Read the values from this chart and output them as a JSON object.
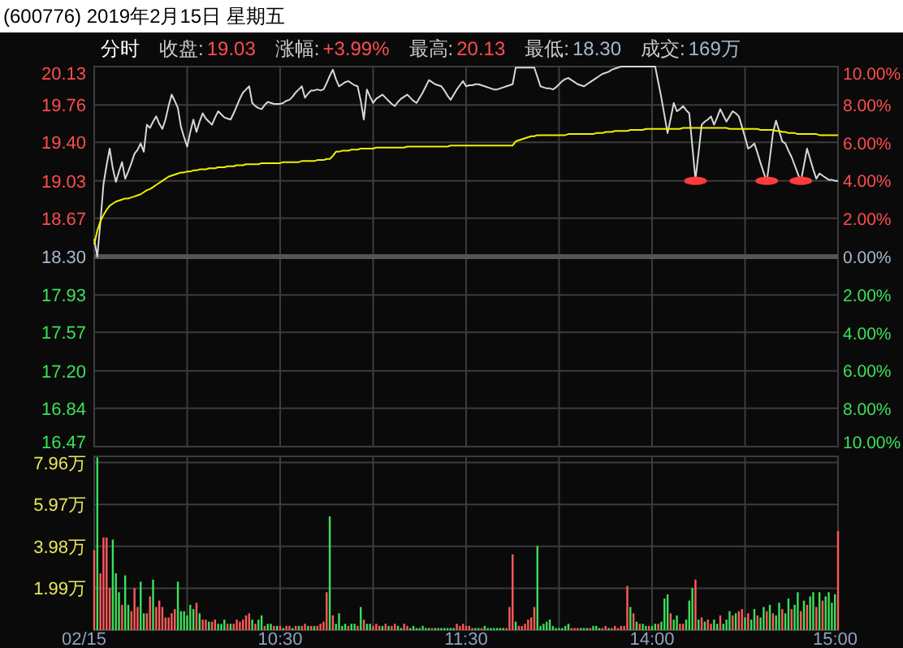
{
  "chart_data": [
    {
      "type": "line",
      "title": "(600776) 2019年2月15日 星期五",
      "annotations": [
        "分时",
        "收盘:",
        "19.03",
        "涨幅:",
        "+3.99%",
        "最高:",
        "20.13",
        "最低:",
        "18.30",
        "成交:",
        "169万"
      ],
      "categories": [
        null,
        null,
        null,
        null,
        null,
        null,
        null,
        null,
        null,
        null,
        null,
        null,
        null,
        null,
        null,
        null,
        null,
        null,
        null,
        null,
        null,
        null,
        null,
        null,
        null,
        null,
        null,
        null,
        null,
        null,
        null,
        null,
        null,
        null,
        null,
        null,
        null,
        null,
        null,
        null,
        null,
        null,
        null,
        null,
        null,
        null,
        null,
        null,
        null,
        null,
        null,
        null,
        null,
        null,
        null,
        null,
        null,
        null,
        null,
        null,
        null,
        null,
        null,
        null,
        null,
        null,
        null,
        null,
        null,
        null,
        null,
        null,
        null,
        null,
        null,
        null,
        null,
        null,
        null,
        null,
        null,
        null,
        null,
        null,
        null,
        null,
        null,
        null,
        null,
        null,
        null,
        null,
        null,
        null,
        null,
        null,
        null,
        null,
        null,
        null,
        null,
        null,
        null,
        null,
        null,
        null,
        null,
        null,
        null,
        null,
        null,
        null,
        null,
        null,
        null,
        null,
        null,
        null,
        null,
        null,
        null,
        null,
        null,
        null,
        null,
        null,
        null,
        null,
        null,
        null,
        null,
        null,
        null,
        null,
        null,
        null,
        null,
        null,
        null,
        null,
        null,
        null,
        null,
        null,
        null,
        null,
        null,
        null,
        null,
        null,
        null,
        null,
        null,
        null,
        null,
        null,
        null,
        null,
        null,
        null,
        null,
        null,
        null,
        null,
        null,
        null,
        null,
        null,
        null,
        null,
        null,
        null,
        null,
        null,
        null,
        null,
        null,
        null,
        null,
        null,
        null,
        null,
        null,
        null,
        null,
        null,
        null,
        null,
        null,
        null,
        null,
        null,
        null,
        null,
        null,
        null,
        null,
        null,
        null,
        null,
        null,
        null,
        null,
        null,
        null,
        null,
        null,
        null,
        null,
        null,
        null,
        null,
        null,
        null,
        null,
        null,
        null,
        null,
        null,
        null,
        null,
        null,
        null,
        null,
        null,
        null,
        null,
        null,
        null,
        null,
        null,
        null,
        null,
        null,
        null,
        null,
        null,
        null,
        null,
        null,
        null
      ],
      "ylim": [
        16.47,
        20.13
      ],
      "yticks": [
        20.13,
        19.76,
        {
          "value": 19.4,
          "label": "19.40"
        },
        19.03,
        18.67,
        {
          "value": 18.3,
          "label": "18.30"
        },
        17.93,
        17.57,
        {
          "value": 17.2,
          "label": "17.20"
        },
        16.84,
        16.47
      ],
      "y2lim": [
        -10,
        10
      ],
      "y2ticks": [
        {
          "value": 10,
          "label": "10.00%"
        },
        {
          "value": 8,
          "label": "8.00%"
        },
        {
          "value": 6,
          "label": "6.00%"
        },
        {
          "value": 4,
          "label": "4.00%"
        },
        {
          "value": 2,
          "label": "2.00%"
        },
        {
          "value": 0,
          "label": "0.00%"
        },
        {
          "value": -2,
          "label": "2.00%"
        },
        {
          "value": -4,
          "label": "4.00%"
        },
        {
          "value": -6,
          "label": "6.00%"
        },
        {
          "value": -8,
          "label": "8.00%"
        },
        {
          "value": -10,
          "label": "10.00%"
        }
      ],
      "grid": true,
      "tick_labels": "y",
      "marker": "none",
      "line_style": "solid",
      "ref_lines": [
        {
          "axis": "y",
          "value": 18.3,
          "color": "#555555"
        }
      ],
      "series": [
        {
          "color": "#d8d8d8",
          "values": [
            18.47,
            18.3,
            18.63,
            19.0,
            19.18,
            19.34,
            19.15,
            19.02,
            19.12,
            19.21,
            19.05,
            19.12,
            19.2,
            19.29,
            19.33,
            19.39,
            19.31,
            19.57,
            19.54,
            19.6,
            19.65,
            19.58,
            19.53,
            19.62,
            19.75,
            19.86,
            19.8,
            19.73,
            19.55,
            19.45,
            19.36,
            19.5,
            19.62,
            19.5,
            19.6,
            19.68,
            19.63,
            19.6,
            19.57,
            19.64,
            19.7,
            19.67,
            19.64,
            19.63,
            19.62,
            19.68,
            19.75,
            19.82,
            19.88,
            19.91,
            19.94,
            19.78,
            19.75,
            19.73,
            19.72,
            19.76,
            19.79,
            19.78,
            19.77,
            19.77,
            19.77,
            19.78,
            19.8,
            19.81,
            19.84,
            19.88,
            19.91,
            19.94,
            19.83,
            19.87,
            19.9,
            19.9,
            19.91,
            19.9,
            19.91,
            19.97,
            20.04,
            20.1,
            20.01,
            19.94,
            19.96,
            19.98,
            19.99,
            19.97,
            19.95,
            19.94,
            19.8,
            19.62,
            19.91,
            19.84,
            19.78,
            19.82,
            19.84,
            19.86,
            19.83,
            19.8,
            19.77,
            19.75,
            19.79,
            19.82,
            19.84,
            19.86,
            19.83,
            19.8,
            19.78,
            19.83,
            19.88,
            19.94,
            20.0,
            19.98,
            19.96,
            19.95,
            19.94,
            19.9,
            19.85,
            19.81,
            19.86,
            19.91,
            19.95,
            19.99,
            19.94,
            19.95,
            19.95,
            19.96,
            19.96,
            19.95,
            19.94,
            19.93,
            19.92,
            19.91,
            19.91,
            19.92,
            19.93,
            19.94,
            19.95,
            19.96,
            20.12,
            20.12,
            20.12,
            20.12,
            20.12,
            20.12,
            20.12,
            20.03,
            19.94,
            19.93,
            19.92,
            19.92,
            19.91,
            19.93,
            19.96,
            19.99,
            20.01,
            20.02,
            20.0,
            19.98,
            19.96,
            19.95,
            19.94,
            19.96,
            19.98,
            20.0,
            20.02,
            20.04,
            20.06,
            20.07,
            20.08,
            20.1,
            20.11,
            20.12,
            20.13,
            20.13,
            20.13,
            20.13,
            20.13,
            20.13,
            20.13,
            20.13,
            20.13,
            20.13,
            20.13,
            20.13,
            19.98,
            19.83,
            19.66,
            19.49,
            19.63,
            19.78,
            19.7,
            19.72,
            19.75,
            19.71,
            19.68,
            19.36,
            19.04,
            19.3,
            19.57,
            19.6,
            19.62,
            19.65,
            19.57,
            19.64,
            19.72,
            19.66,
            19.6,
            19.65,
            19.7,
            19.68,
            19.65,
            19.55,
            19.45,
            19.34,
            19.36,
            19.39,
            19.3,
            19.2,
            19.11,
            19.02,
            19.25,
            19.49,
            19.61,
            19.51,
            19.41,
            19.39,
            19.32,
            19.26,
            19.18,
            19.1,
            19.02,
            19.18,
            19.34,
            19.24,
            19.14,
            19.05,
            19.1,
            19.08,
            19.06,
            19.04,
            19.04,
            19.03,
            19.03
          ]
        },
        {
          "color": "#f0f000",
          "values": [
            18.42,
            18.55,
            18.64,
            18.7,
            18.75,
            18.79,
            18.81,
            18.83,
            18.84,
            18.85,
            18.86,
            18.86,
            18.87,
            18.88,
            18.89,
            18.9,
            18.92,
            18.94,
            18.95,
            18.97,
            18.99,
            19.01,
            19.03,
            19.05,
            19.07,
            19.08,
            19.09,
            19.1,
            19.11,
            19.11,
            19.12,
            19.12,
            19.13,
            19.13,
            19.14,
            19.14,
            19.14,
            19.15,
            19.15,
            19.15,
            19.16,
            19.16,
            19.16,
            19.17,
            19.17,
            19.17,
            19.18,
            19.18,
            19.18,
            19.19,
            19.19,
            19.19,
            19.19,
            19.19,
            19.2,
            19.2,
            19.2,
            19.2,
            19.2,
            19.2,
            19.2,
            19.21,
            19.21,
            19.21,
            19.21,
            19.21,
            19.21,
            19.22,
            19.22,
            19.22,
            19.22,
            19.22,
            19.23,
            19.23,
            19.23,
            19.24,
            19.24,
            19.27,
            19.31,
            19.31,
            19.32,
            19.32,
            19.32,
            19.33,
            19.33,
            19.33,
            19.34,
            19.34,
            19.34,
            19.34,
            19.34,
            19.35,
            19.35,
            19.35,
            19.35,
            19.35,
            19.35,
            19.35,
            19.35,
            19.35,
            19.35,
            19.36,
            19.36,
            19.36,
            19.36,
            19.36,
            19.36,
            19.36,
            19.36,
            19.36,
            19.36,
            19.36,
            19.36,
            19.36,
            19.36,
            19.37,
            19.37,
            19.37,
            19.37,
            19.37,
            19.37,
            19.37,
            19.37,
            19.37,
            19.37,
            19.37,
            19.37,
            19.37,
            19.37,
            19.37,
            19.37,
            19.37,
            19.37,
            19.37,
            19.37,
            19.37,
            19.41,
            19.42,
            19.43,
            19.44,
            19.45,
            19.46,
            19.46,
            19.47,
            19.47,
            19.47,
            19.47,
            19.47,
            19.47,
            19.47,
            19.47,
            19.47,
            19.47,
            19.48,
            19.48,
            19.48,
            19.48,
            19.48,
            19.48,
            19.48,
            19.48,
            19.48,
            19.49,
            19.49,
            19.49,
            19.5,
            19.5,
            19.5,
            19.51,
            19.51,
            19.51,
            19.51,
            19.51,
            19.52,
            19.52,
            19.52,
            19.52,
            19.52,
            19.53,
            19.53,
            19.53,
            19.53,
            19.53,
            19.53,
            19.53,
            19.53,
            19.53,
            19.53,
            19.53,
            19.53,
            19.54,
            19.54,
            19.54,
            19.54,
            19.54,
            19.54,
            19.54,
            19.54,
            19.54,
            19.54,
            19.54,
            19.54,
            19.54,
            19.54,
            19.54,
            19.53,
            19.53,
            19.53,
            19.53,
            19.53,
            19.53,
            19.53,
            19.53,
            19.53,
            19.53,
            19.52,
            19.52,
            19.52,
            19.52,
            19.52,
            19.51,
            19.51,
            19.5,
            19.5,
            19.49,
            19.49,
            19.49,
            19.48,
            19.48,
            19.48,
            19.48,
            19.48,
            19.48,
            19.48,
            19.47,
            19.47,
            19.47,
            19.47,
            19.47,
            19.47,
            19.47
          ]
        },
        {
          "type": "scatter",
          "marker": "circle",
          "color": "#ff3b3b",
          "values": [
            null,
            null,
            null,
            null,
            null,
            null,
            null,
            null,
            null,
            null,
            null,
            null,
            null,
            null,
            null,
            null,
            null,
            null,
            null,
            null,
            null,
            null,
            null,
            null,
            null,
            null,
            null,
            null,
            null,
            null,
            null,
            null,
            null,
            null,
            null,
            null,
            null,
            null,
            null,
            null,
            null,
            null,
            null,
            null,
            null,
            null,
            null,
            null,
            null,
            null,
            null,
            null,
            null,
            null,
            null,
            null,
            null,
            null,
            null,
            null,
            null,
            null,
            null,
            null,
            null,
            null,
            null,
            null,
            null,
            null,
            null,
            null,
            null,
            null,
            null,
            null,
            null,
            null,
            null,
            null,
            null,
            null,
            null,
            null,
            null,
            null,
            null,
            null,
            null,
            null,
            null,
            null,
            null,
            null,
            null,
            null,
            null,
            null,
            null,
            null,
            null,
            null,
            null,
            null,
            null,
            null,
            null,
            null,
            null,
            null,
            null,
            null,
            null,
            null,
            null,
            null,
            null,
            null,
            null,
            null,
            null,
            null,
            null,
            null,
            null,
            null,
            null,
            null,
            null,
            null,
            null,
            null,
            null,
            null,
            null,
            null,
            null,
            null,
            null,
            null,
            null,
            null,
            null,
            null,
            null,
            null,
            null,
            null,
            null,
            null,
            null,
            null,
            null,
            null,
            null,
            null,
            null,
            null,
            null,
            null,
            null,
            null,
            null,
            null,
            null,
            null,
            null,
            null,
            null,
            null,
            null,
            null,
            null,
            null,
            null,
            null,
            null,
            null,
            null,
            null,
            null,
            null,
            null,
            null,
            null,
            null,
            null,
            null,
            null,
            null,
            null,
            null,
            null,
            null,
            19.03,
            null,
            null,
            null,
            null,
            null,
            null,
            null,
            null,
            null,
            null,
            null,
            null,
            null,
            null,
            null,
            null,
            null,
            null,
            null,
            null,
            null,
            null,
            19.03,
            null,
            null,
            null,
            null,
            null,
            null,
            null,
            null,
            null,
            null,
            19.03,
            null,
            null,
            null,
            null,
            null,
            null,
            null,
            null,
            null,
            null,
            null,
            null
          ]
        }
      ]
    },
    {
      "type": "bar",
      "categories": [
        "02/15",
        null,
        null,
        null,
        null,
        null,
        null,
        null,
        null,
        null,
        null,
        null,
        null,
        null,
        null,
        null,
        null,
        null,
        null,
        null,
        null,
        null,
        null,
        null,
        null,
        null,
        null,
        null,
        null,
        null,
        null,
        null,
        null,
        null,
        null,
        null,
        null,
        null,
        null,
        null,
        null,
        null,
        null,
        null,
        null,
        null,
        null,
        null,
        null,
        null,
        null,
        null,
        null,
        null,
        null,
        null,
        null,
        null,
        null,
        null,
        "10:30",
        null,
        null,
        null,
        null,
        null,
        null,
        null,
        null,
        null,
        null,
        null,
        null,
        null,
        null,
        null,
        null,
        null,
        null,
        null,
        null,
        null,
        null,
        null,
        null,
        null,
        null,
        null,
        null,
        null,
        null,
        null,
        null,
        null,
        null,
        null,
        null,
        null,
        null,
        null,
        null,
        null,
        null,
        null,
        null,
        null,
        null,
        null,
        null,
        null,
        null,
        null,
        null,
        null,
        null,
        null,
        null,
        null,
        null,
        null,
        "11:30",
        null,
        null,
        null,
        null,
        null,
        null,
        null,
        null,
        null,
        null,
        null,
        null,
        null,
        null,
        null,
        null,
        null,
        null,
        null,
        null,
        null,
        null,
        null,
        null,
        null,
        null,
        null,
        null,
        null,
        null,
        null,
        null,
        null,
        null,
        null,
        null,
        null,
        null,
        null,
        null,
        null,
        null,
        null,
        null,
        null,
        null,
        null,
        null,
        null,
        null,
        null,
        null,
        null,
        null,
        null,
        null,
        null,
        null,
        null,
        "14:00",
        null,
        null,
        null,
        null,
        null,
        null,
        null,
        null,
        null,
        null,
        null,
        null,
        null,
        null,
        null,
        null,
        null,
        null,
        null,
        null,
        null,
        null,
        null,
        null,
        null,
        null,
        null,
        null,
        null,
        null,
        null,
        null,
        null,
        null,
        null,
        null,
        null,
        null,
        null,
        null,
        null,
        null,
        null,
        null,
        null,
        null,
        null,
        null,
        null,
        null,
        null,
        null,
        null,
        null,
        null,
        null,
        null,
        null,
        null,
        "15:00"
      ],
      "ylim": [
        0,
        8.25
      ],
      "yticks": [
        {
          "value": 0,
          "label": null
        },
        {
          "value": 1.99,
          "label": "1.99万"
        },
        {
          "value": 3.98,
          "label": "3.98万"
        },
        {
          "value": 5.97,
          "label": "5.97万"
        },
        {
          "value": 7.96,
          "label": "7.96万"
        }
      ],
      "grid": true,
      "values": [
        3.8,
        8.2,
        2.7,
        4.4,
        4.4,
        2.0,
        4.3,
        2.7,
        1.8,
        1.2,
        2.6,
        1.2,
        0.9,
        2.0,
        1.1,
        2.3,
        0.8,
        0.8,
        1.6,
        2.4,
        1.1,
        1.4,
        1.1,
        0.6,
        0.6,
        0.8,
        1.0,
        2.3,
        0.9,
        0.9,
        0.7,
        1.2,
        1.0,
        1.3,
        0.8,
        0.5,
        0.5,
        0.4,
        0.4,
        0.5,
        0.3,
        0.3,
        0.5,
        0.3,
        0.3,
        0.3,
        0.5,
        0.4,
        0.5,
        0.7,
        0.8,
        0.5,
        0.3,
        0.5,
        0.7,
        0.2,
        0.3,
        0.3,
        0.2,
        0.2,
        0.2,
        0.1,
        0.2,
        0.2,
        0.1,
        0.2,
        0.2,
        0.2,
        0.3,
        0.2,
        0.2,
        0.2,
        0.2,
        0.3,
        0.4,
        1.8,
        5.4,
        0.7,
        0.3,
        0.8,
        0.2,
        0.3,
        0.2,
        0.3,
        0.3,
        0.2,
        1.1,
        0.5,
        0.3,
        0.3,
        0.2,
        0.3,
        0.2,
        0.2,
        0.3,
        0.2,
        0.2,
        0.3,
        0.2,
        0.1,
        0.3,
        0.2,
        0.1,
        0.2,
        0.1,
        0.1,
        0.2,
        0.1,
        0.1,
        0.1,
        0.1,
        0.1,
        0.1,
        0.1,
        0.1,
        0.1,
        0.1,
        0.3,
        0.2,
        0.3,
        0.2,
        0.2,
        0.1,
        0.1,
        0.1,
        0.1,
        0.2,
        0.1,
        0.1,
        0.1,
        0.1,
        0.1,
        0.1,
        0.1,
        1.1,
        3.6,
        0.4,
        0.2,
        0.2,
        0.3,
        0.5,
        0.6,
        1.1,
        4.0,
        0.2,
        0.3,
        0.4,
        0.5,
        0.2,
        0.1,
        0.1,
        0.1,
        0.2,
        0.3,
        0.1,
        0.1,
        0.1,
        0.1,
        0.1,
        0.1,
        0.1,
        0.2,
        0.2,
        0.1,
        0.1,
        0.2,
        0.1,
        0.1,
        0.2,
        0.1,
        0.2,
        0.2,
        2.1,
        1.1,
        0.8,
        0.4,
        0.3,
        0.3,
        0.2,
        0.2,
        0.2,
        0.3,
        0.3,
        0.4,
        1.5,
        1.7,
        0.8,
        0.5,
        0.7,
        0.3,
        0.3,
        0.5,
        1.4,
        2.0,
        2.4,
        0.5,
        0.6,
        0.4,
        0.5,
        0.3,
        0.5,
        0.3,
        0.7,
        0.3,
        0.5,
        0.9,
        0.7,
        0.8,
        0.9,
        1.0,
        0.6,
        0.8,
        0.5,
        1.0,
        0.7,
        0.6,
        1.1,
        0.9,
        1.2,
        0.8,
        0.7,
        1.3,
        1.0,
        0.8,
        1.5,
        1.0,
        1.2,
        1.8,
        0.9,
        1.4,
        1.2,
        1.6,
        1.8,
        1.1,
        1.8,
        1.4,
        1.6,
        1.8,
        1.3,
        1.7,
        4.7
      ],
      "colors": [
        "#ff5a5a",
        "#3be05a",
        "#ff5a5a",
        "#ff5a5a",
        "#ff5a5a",
        "#ff5a5a",
        "#3be05a",
        "#3be05a",
        "#3be05a",
        "#ff5a5a",
        "#3be05a",
        "#3be05a",
        "#ff5a5a",
        "#ff5a5a",
        "#ff5a5a",
        "#3be05a",
        "#3be05a",
        "#ff5a5a",
        "#ff5a5a",
        "#3be05a",
        "#ff5a5a",
        "#ff5a5a",
        "#ff5a5a",
        "#ff5a5a",
        "#ff5a5a",
        "#ff5a5a",
        "#ff5a5a",
        "#3be05a",
        "#3be05a",
        "#3be05a",
        "#3be05a",
        "#3be05a",
        "#3be05a",
        "#ff5a5a",
        "#3be05a",
        "#ff5a5a",
        "#ff5a5a",
        "#3be05a",
        "#ff5a5a",
        "#ff5a5a",
        "#3be05a",
        "#3be05a",
        "#3be05a",
        "#ff5a5a",
        "#3be05a",
        "#ff5a5a",
        "#ff5a5a",
        "#ff5a5a",
        "#ff5a5a",
        "#ff5a5a",
        "#ff5a5a",
        "#3be05a",
        "#ff5a5a",
        "#3be05a",
        "#3be05a",
        "#ff5a5a",
        "#3be05a",
        "#3be05a",
        "#ff5a5a",
        "#3be05a",
        "#ff5a5a",
        "#3be05a",
        "#ff5a5a",
        "#ff5a5a",
        "#3be05a",
        "#ff5a5a",
        "#3be05a",
        "#ff5a5a",
        "#ff5a5a",
        "#3be05a",
        "#ff5a5a",
        "#3be05a",
        "#ff5a5a",
        "#ff5a5a",
        "#ff5a5a",
        "#ff5a5a",
        "#3be05a",
        "#ff5a5a",
        "#3be05a",
        "#3be05a",
        "#3be05a",
        "#3be05a",
        "#ff5a5a",
        "#3be05a",
        "#3be05a",
        "#ff5a5a",
        "#3be05a",
        "#ff5a5a",
        "#3be05a",
        "#3be05a",
        "#ff5a5a",
        "#ff5a5a",
        "#ff5a5a",
        "#3be05a",
        "#ff5a5a",
        "#3be05a",
        "#ff5a5a",
        "#ff5a5a",
        "#3be05a",
        "#3be05a",
        "#ff5a5a",
        "#ff5a5a",
        "#3be05a",
        "#3be05a",
        "#3be05a",
        "#3be05a",
        "#3be05a",
        "#3be05a",
        "#3be05a",
        "#ff5a5a",
        "#3be05a",
        "#3be05a",
        "#3be05a",
        "#3be05a",
        "#3be05a",
        "#3be05a",
        "#3be05a",
        "#ff5a5a",
        "#ff5a5a",
        "#ff5a5a",
        "#ff5a5a",
        "#ff5a5a",
        "#ff5a5a",
        "#3be05a",
        "#3be05a",
        "#ff5a5a",
        "#3be05a",
        "#3be05a",
        "#3be05a",
        "#3be05a",
        "#3be05a",
        "#3be05a",
        "#3be05a",
        "#ff5a5a",
        "#ff5a5a",
        "#ff5a5a",
        "#3be05a",
        "#ff5a5a",
        "#ff5a5a",
        "#ff5a5a",
        "#ff5a5a",
        "#ff5a5a",
        "#ff5a5a",
        "#3be05a",
        "#3be05a",
        "#3be05a",
        "#3be05a",
        "#3be05a",
        "#3be05a",
        "#3be05a",
        "#3be05a",
        "#3be05a",
        "#3be05a",
        "#3be05a",
        "#ff5a5a",
        "#ff5a5a",
        "#ff5a5a",
        "#3be05a",
        "#3be05a",
        "#3be05a",
        "#ff5a5a",
        "#3be05a",
        "#3be05a",
        "#3be05a",
        "#ff5a5a",
        "#ff5a5a",
        "#3be05a",
        "#ff5a5a",
        "#ff5a5a",
        "#ff5a5a",
        "#ff5a5a",
        "#ff5a5a",
        "#ff5a5a",
        "#3be05a",
        "#ff5a5a",
        "#3be05a",
        "#ff5a5a",
        "#3be05a",
        "#3be05a",
        "#ff5a5a",
        "#3be05a",
        "#3be05a",
        "#ff5a5a",
        "#3be05a",
        "#3be05a",
        "#3be05a",
        "#ff5a5a",
        "#3be05a",
        "#3be05a",
        "#ff5a5a",
        "#ff5a5a",
        "#3be05a",
        "#3be05a",
        "#3be05a",
        "#ff5a5a",
        "#3be05a",
        "#ff5a5a",
        "#3be05a",
        "#ff5a5a",
        "#ff5a5a",
        "#3be05a",
        "#3be05a",
        "#ff5a5a",
        "#3be05a",
        "#3be05a",
        "#3be05a",
        "#ff5a5a",
        "#3be05a",
        "#ff5a5a",
        "#ff5a5a",
        "#3be05a",
        "#ff5a5a",
        "#3be05a",
        "#3be05a",
        "#ff5a5a",
        "#3be05a",
        "#3be05a",
        "#ff5a5a",
        "#3be05a",
        "#ff5a5a",
        "#3be05a",
        "#3be05a",
        "#ff5a5a",
        "#3be05a",
        "#3be05a",
        "#ff5a5a",
        "#3be05a",
        "#3be05a",
        "#ff5a5a",
        "#3be05a",
        "#ff5a5a",
        "#3be05a",
        "#3be05a",
        "#ff5a5a",
        "#3be05a",
        "#ff5a5a",
        "#3be05a",
        "#3be05a",
        "#3be05a",
        "#3be05a",
        "#ff5a5a"
      ]
    }
  ]
}
